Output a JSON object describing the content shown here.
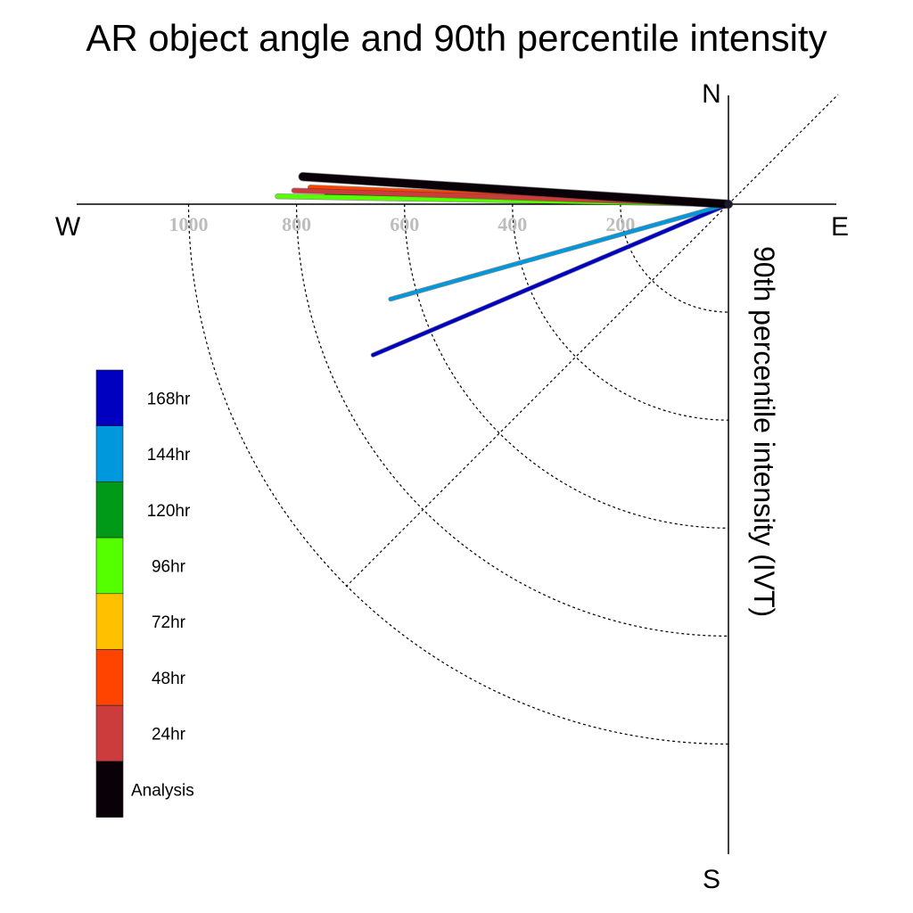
{
  "chart_data": {
    "type": "line",
    "title": "AR object angle and 90th percentile intensity",
    "ylabel": "90th percentile intensity (IVT)",
    "compass": {
      "north": "N",
      "south": "S",
      "west": "W",
      "east": "E"
    },
    "radial_ticks": [
      200,
      400,
      600,
      800,
      1000
    ],
    "radial_tick_labels": [
      "200",
      "400",
      "600",
      "800",
      "1000"
    ],
    "rlim": [
      0,
      1200
    ],
    "grid": true,
    "legend_position": "bottom-left",
    "series": [
      {
        "name": "Analysis",
        "color": "#0a0008",
        "intensity": 790,
        "angle_deg_from_west": -3.7,
        "width": 9
      },
      {
        "name": "24hr",
        "color": "#cc3c3c",
        "intensity": 805,
        "angle_deg_from_west": -1.8,
        "width": 5
      },
      {
        "name": "48hr",
        "color": "#ff4400",
        "intensity": 775,
        "angle_deg_from_west": -2.3,
        "width": 5
      },
      {
        "name": "72hr",
        "color": "#ffc000",
        "intensity": 770,
        "angle_deg_from_west": -2.1,
        "width": 3
      },
      {
        "name": "96hr",
        "color": "#55ff00",
        "intensity": 835,
        "angle_deg_from_west": -1.0,
        "width": 5
      },
      {
        "name": "120hr",
        "color": "#009a19",
        "intensity": 745,
        "angle_deg_from_west": -1.4,
        "width": 3
      },
      {
        "name": "144hr",
        "color": "#0098dc",
        "intensity": 650,
        "angle_deg_from_west": 15.7,
        "width": 4
      },
      {
        "name": "168hr",
        "color": "#0000c0",
        "intensity": 715,
        "angle_deg_from_west": 23.0,
        "width": 4
      }
    ]
  }
}
